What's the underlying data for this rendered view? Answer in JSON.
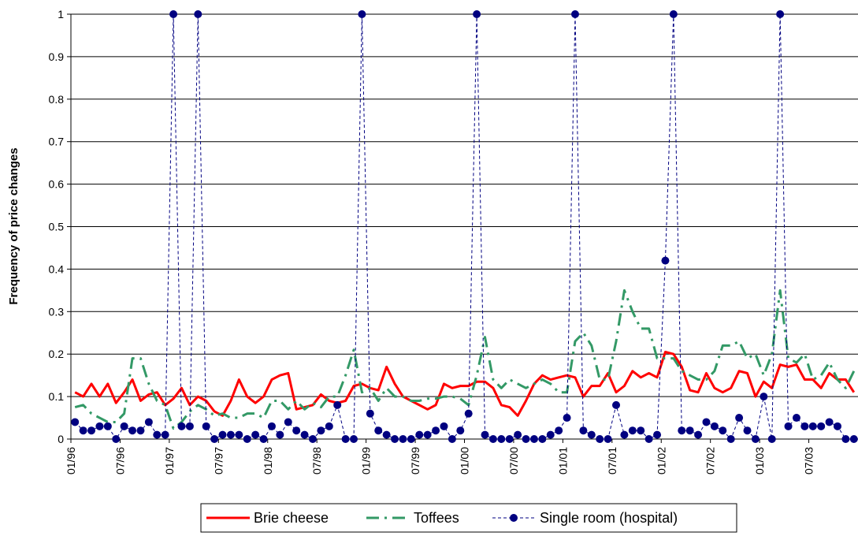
{
  "chart_data": {
    "type": "line",
    "y_label": "Frequency of price changes",
    "categories": [
      "01/96",
      null,
      null,
      null,
      null,
      null,
      "07/96",
      null,
      null,
      null,
      null,
      null,
      "01/97",
      null,
      null,
      null,
      null,
      null,
      "07/97",
      null,
      null,
      null,
      null,
      null,
      "01/98",
      null,
      null,
      null,
      null,
      null,
      "07/98",
      null,
      null,
      null,
      null,
      null,
      "01/99",
      null,
      null,
      null,
      null,
      null,
      "07/99",
      null,
      null,
      null,
      null,
      null,
      "01/00",
      null,
      null,
      null,
      null,
      null,
      "07/00",
      null,
      null,
      null,
      null,
      null,
      "01/01",
      null,
      null,
      null,
      null,
      null,
      "07/01",
      null,
      null,
      null,
      null,
      null,
      "01/02",
      null,
      null,
      null,
      null,
      null,
      "07/02",
      null,
      null,
      null,
      null,
      null,
      "01/03",
      null,
      null,
      null,
      null,
      null,
      "07/03",
      null,
      null,
      null,
      null,
      null
    ],
    "series": [
      {
        "name": "Brie cheese",
        "color": "#ff0000",
        "values": [
          0.11,
          0.1,
          0.13,
          0.1,
          0.13,
          0.085,
          0.11,
          0.14,
          0.09,
          0.105,
          0.11,
          0.08,
          0.095,
          0.12,
          0.08,
          0.1,
          0.09,
          0.065,
          0.055,
          0.09,
          0.14,
          0.1,
          0.085,
          0.1,
          0.14,
          0.15,
          0.155,
          0.07,
          0.075,
          0.08,
          0.105,
          0.09,
          0.085,
          0.09,
          0.125,
          0.13,
          0.12,
          0.115,
          0.17,
          0.13,
          0.1,
          0.09,
          0.08,
          0.07,
          0.08,
          0.13,
          0.12,
          0.125,
          0.125,
          0.135,
          0.135,
          0.12,
          0.08,
          0.075,
          0.055,
          0.09,
          0.13,
          0.15,
          0.14,
          0.145,
          0.15,
          0.145,
          0.1,
          0.125,
          0.125,
          0.155,
          0.11,
          0.125,
          0.16,
          0.145,
          0.155,
          0.145,
          0.205,
          0.2,
          0.17,
          0.115,
          0.11,
          0.155,
          0.12,
          0.11,
          0.12,
          0.16,
          0.155,
          0.1,
          0.135,
          0.12,
          0.175,
          0.17,
          0.175,
          0.14,
          0.14,
          0.12,
          0.155,
          0.14,
          0.14,
          0.11
        ]
      },
      {
        "name": "Toffees",
        "color": "#339966",
        "values": [
          0.075,
          0.08,
          0.06,
          0.05,
          0.04,
          0.04,
          0.06,
          0.19,
          0.19,
          0.13,
          0.09,
          0.08,
          0.025,
          0.04,
          0.065,
          0.08,
          0.07,
          0.055,
          0.06,
          0.05,
          0.05,
          0.06,
          0.06,
          0.05,
          0.09,
          0.09,
          0.07,
          0.09,
          0.07,
          0.085,
          0.075,
          0.1,
          0.1,
          0.15,
          0.21,
          0.11,
          0.12,
          0.09,
          0.12,
          0.1,
          0.1,
          0.09,
          0.09,
          0.095,
          0.095,
          0.1,
          0.1,
          0.095,
          0.08,
          0.15,
          0.24,
          0.14,
          0.12,
          0.14,
          0.13,
          0.12,
          0.13,
          0.14,
          0.13,
          0.11,
          0.11,
          0.23,
          0.25,
          0.22,
          0.14,
          0.14,
          0.23,
          0.35,
          0.3,
          0.26,
          0.26,
          0.19,
          0.19,
          0.19,
          0.16,
          0.15,
          0.14,
          0.14,
          0.16,
          0.22,
          0.22,
          0.23,
          0.19,
          0.2,
          0.15,
          0.2,
          0.35,
          0.19,
          0.18,
          0.2,
          0.14,
          0.15,
          0.18,
          0.14,
          0.12,
          0.16
        ]
      },
      {
        "name": "Single room (hospital)",
        "color": "#000080",
        "values": [
          0.04,
          0.02,
          0.02,
          0.03,
          0.03,
          0,
          0.03,
          0.02,
          0.02,
          0.04,
          0.01,
          0.01,
          1,
          0.03,
          0.03,
          1,
          0.03,
          0,
          0.01,
          0.01,
          0.01,
          0,
          0.01,
          0,
          0.03,
          0.01,
          0.04,
          0.02,
          0.01,
          0,
          0.02,
          0.03,
          0.08,
          0,
          0,
          1,
          0.06,
          0.02,
          0.01,
          0,
          0,
          0,
          0.01,
          0.01,
          0.02,
          0.03,
          0,
          0.02,
          0.06,
          1,
          0.01,
          0,
          0,
          0,
          0.01,
          0,
          0,
          0,
          0.01,
          0.02,
          0.05,
          1,
          0.02,
          0.01,
          0,
          0,
          0.08,
          0.01,
          0.02,
          0.02,
          0,
          0.01,
          0.42,
          1,
          0.02,
          0.02,
          0.01,
          0.04,
          0.03,
          0.02,
          0,
          0.05,
          0.02,
          0,
          0.1,
          0,
          1,
          0.03,
          0.05,
          0.03,
          0.03,
          0.03,
          0.04,
          0.03,
          0,
          0
        ]
      }
    ],
    "ylim": [
      0,
      1
    ],
    "yticks": [
      0,
      0.1,
      0.2,
      0.3,
      0.4,
      0.5,
      0.6,
      0.7,
      0.8,
      0.9,
      1
    ],
    "grid": true,
    "legend": "bottom"
  }
}
